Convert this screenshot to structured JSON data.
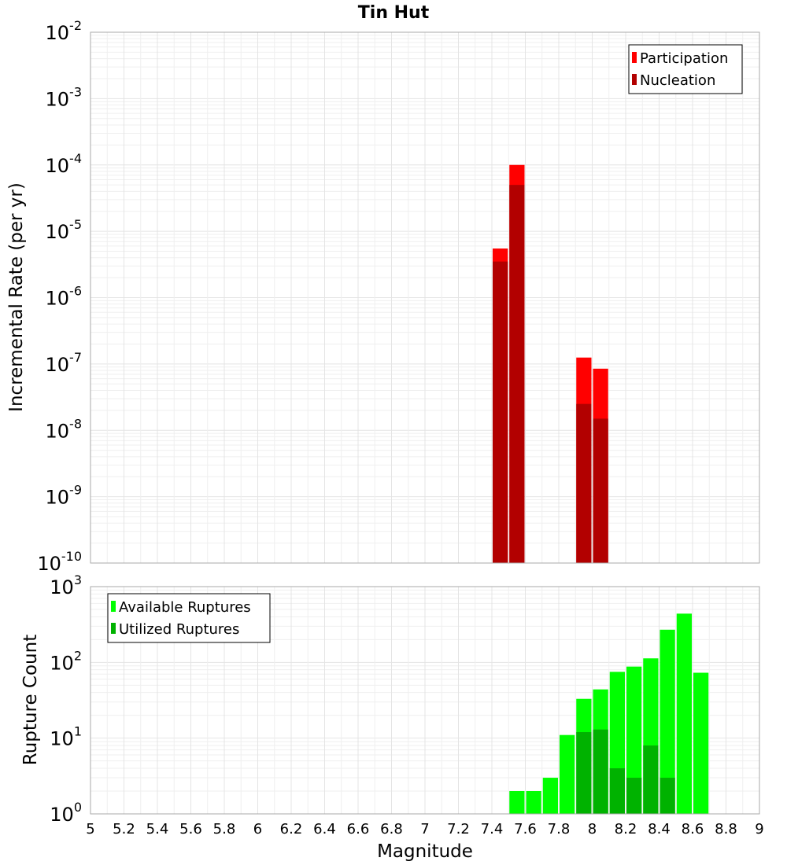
{
  "chart_data": {
    "title": "Tin Hut",
    "x_label": "Magnitude",
    "x_ticks": [
      "5",
      "5.2",
      "5.4",
      "5.6",
      "5.8",
      "6",
      "6.2",
      "6.4",
      "6.6",
      "6.8",
      "7",
      "7.2",
      "7.4",
      "7.6",
      "7.8",
      "8",
      "8.2",
      "8.4",
      "8.6",
      "8.8",
      "9"
    ],
    "bin_width": 0.1,
    "panels": [
      {
        "type": "bar",
        "y_label": "Incremental Rate (per yr)",
        "y_scale": "log",
        "xlim": [
          5,
          9
        ],
        "y_ticks": [
          {
            "base": "10",
            "exp": "-2"
          },
          {
            "base": "10",
            "exp": "-3"
          },
          {
            "base": "10",
            "exp": "-4"
          },
          {
            "base": "10",
            "exp": "-5"
          },
          {
            "base": "10",
            "exp": "-6"
          },
          {
            "base": "10",
            "exp": "-7"
          },
          {
            "base": "10",
            "exp": "-8"
          },
          {
            "base": "10",
            "exp": "-9"
          },
          {
            "base": "10",
            "exp": "-10"
          }
        ],
        "legend_position": "top-right",
        "grid": true,
        "series": [
          {
            "name": "Participation",
            "color": "#ff0000",
            "x": [
              7.45,
              7.55,
              7.95,
              8.05
            ],
            "values": [
              5.5e-06,
              0.0001,
              1.25e-07,
              8.5e-08
            ]
          },
          {
            "name": "Nucleation",
            "color": "#b20000",
            "x": [
              7.45,
              7.55,
              7.95,
              8.05
            ],
            "values": [
              3.5e-06,
              5e-05,
              2.5e-08,
              1.5e-08
            ]
          }
        ]
      },
      {
        "type": "bar",
        "y_label": "Rupture Count",
        "y_scale": "log",
        "xlim": [
          5,
          9
        ],
        "y_ticks": [
          {
            "base": "10",
            "exp": "3"
          },
          {
            "base": "10",
            "exp": "2"
          },
          {
            "base": "10",
            "exp": "1"
          },
          {
            "base": "10",
            "exp": "0"
          }
        ],
        "legend_position": "top-left",
        "grid": true,
        "series": [
          {
            "name": "Available Ruptures",
            "color": "#00ff00",
            "x": [
              7.25,
              7.45,
              7.55,
              7.65,
              7.75,
              7.85,
              7.95,
              8.05,
              8.15,
              8.25,
              8.35,
              8.45,
              8.55,
              8.65
            ],
            "values": [
              1,
              1,
              2,
              2,
              3,
              11,
              33,
              44,
              75,
              88,
              113,
              270,
              440,
              73
            ]
          },
          {
            "name": "Utilized Ruptures",
            "color": "#00b200",
            "x": [
              7.45,
              7.55,
              7.65,
              7.85,
              7.95,
              8.05,
              8.15,
              8.25,
              8.35,
              8.45,
              8.55,
              8.65
            ],
            "values": [
              1,
              1,
              1,
              1,
              12,
              13,
              4,
              3,
              8,
              3,
              1,
              1
            ]
          }
        ]
      }
    ]
  }
}
